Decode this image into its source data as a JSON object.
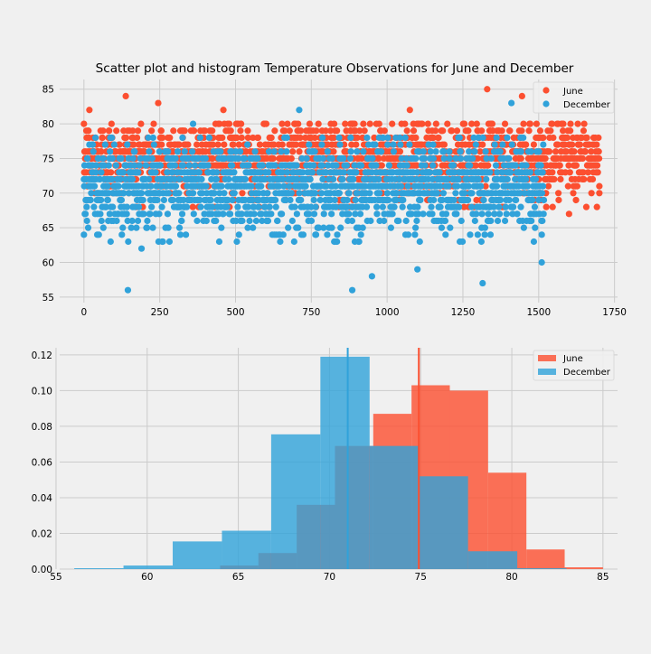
{
  "colors": {
    "june": "#fc4f30",
    "december": "#30a2da",
    "background": "#f0f0f0",
    "grid": "#cbcbcb"
  },
  "chart_data": [
    {
      "type": "scatter",
      "title": "Scatter plot and histogram Temperature Observations for June and December",
      "xlim": [
        -80,
        1760
      ],
      "ylim": [
        54.2,
        86.4
      ],
      "x_ticks": [
        0,
        250,
        500,
        750,
        1000,
        1250,
        1500,
        1750
      ],
      "y_ticks": [
        55,
        60,
        65,
        70,
        75,
        80,
        85
      ],
      "legend_position": "top-right",
      "grid": true,
      "series": [
        {
          "name": "June",
          "color": "#fc4f30",
          "n_points": 1700,
          "x_range": [
            0,
            1700
          ],
          "mean_y": 74.9,
          "min_y": 64,
          "max_y": 85,
          "band_core": [
            70,
            79
          ],
          "notable_points": [
            [
              18,
              82
            ],
            [
              138,
              84
            ],
            [
              245,
              83
            ],
            [
              460,
              82
            ],
            [
              1075,
              82
            ],
            [
              1330,
              85
            ],
            [
              1445,
              84
            ],
            [
              1505,
              70
            ],
            [
              1600,
              67
            ],
            [
              1700,
              71
            ]
          ]
        },
        {
          "name": "December",
          "color": "#30a2da",
          "n_points": 1517,
          "x_range": [
            0,
            1517
          ],
          "mean_y": 71.0,
          "min_y": 56,
          "max_y": 83,
          "band_core": [
            65,
            77
          ],
          "notable_points": [
            [
              0,
              64
            ],
            [
              145,
              56
            ],
            [
              190,
              62
            ],
            [
              360,
              80
            ],
            [
              710,
              82
            ],
            [
              885,
              56
            ],
            [
              950,
              58
            ],
            [
              1100,
              59
            ],
            [
              1315,
              57
            ],
            [
              1410,
              83
            ],
            [
              1510,
              60
            ]
          ]
        }
      ]
    },
    {
      "type": "bar",
      "subtype": "histogram",
      "xlim": [
        55.2,
        85.8
      ],
      "ylim": [
        0,
        0.124
      ],
      "x_ticks": [
        55,
        60,
        65,
        70,
        75,
        80,
        85
      ],
      "y_ticks": [
        0.0,
        0.02,
        0.04,
        0.06,
        0.08,
        0.1,
        0.12
      ],
      "legend_position": "top-right",
      "grid": true,
      "series": [
        {
          "name": "June",
          "color": "#fc4f30",
          "mean_line": 74.9,
          "bin_edges": [
            64,
            66.1,
            68.2,
            70.3,
            72.4,
            74.5,
            76.6,
            78.7,
            80.8,
            82.9,
            85
          ],
          "values": [
            0.002,
            0.009,
            0.036,
            0.069,
            0.087,
            0.103,
            0.1,
            0.054,
            0.011,
            0.001
          ]
        },
        {
          "name": "December",
          "color": "#30a2da",
          "mean_line": 71.0,
          "bin_edges": [
            56,
            58.7,
            61.4,
            64.1,
            66.8,
            69.5,
            72.2,
            74.9,
            77.6,
            80.3,
            83
          ],
          "values": [
            0.0005,
            0.002,
            0.0155,
            0.0215,
            0.0755,
            0.119,
            0.069,
            0.052,
            0.01,
            0.0005
          ]
        }
      ]
    }
  ]
}
